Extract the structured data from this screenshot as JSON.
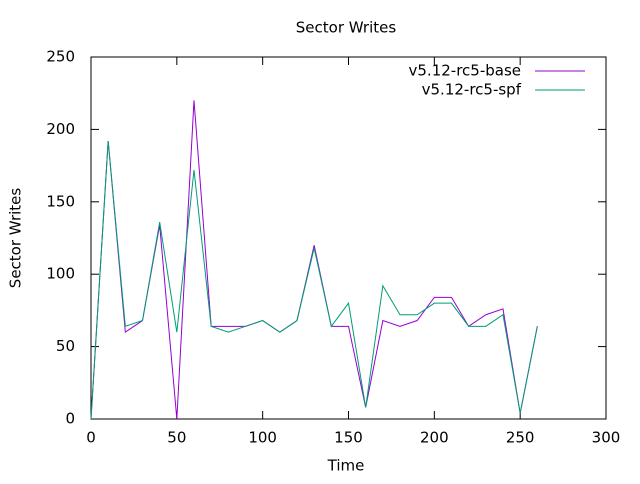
{
  "chart_data": {
    "type": "line",
    "title": "Sector Writes",
    "x_label": "Time",
    "y_label": "Sector Writes",
    "x": [
      0,
      10,
      20,
      30,
      40,
      50,
      60,
      70,
      80,
      90,
      100,
      110,
      120,
      130,
      140,
      150,
      160,
      170,
      180,
      190,
      200,
      210,
      220,
      230,
      240,
      250,
      260
    ],
    "series": [
      {
        "name": "v5.12-rc5-base",
        "color": "#9400d3",
        "values": [
          0,
          192,
          60,
          68,
          134,
          0,
          220,
          64,
          64,
          64,
          68,
          60,
          68,
          120,
          64,
          64,
          8,
          68,
          64,
          68,
          84,
          84,
          64,
          72,
          76,
          4,
          64
        ]
      },
      {
        "name": "v5.12-rc5-spf",
        "color": "#009e73",
        "values": [
          0,
          192,
          64,
          68,
          136,
          60,
          172,
          64,
          60,
          64,
          68,
          60,
          68,
          118,
          64,
          80,
          8,
          92,
          72,
          72,
          80,
          80,
          64,
          64,
          72,
          4,
          64
        ]
      }
    ],
    "xlim": [
      0,
      300
    ],
    "xticks": [
      0,
      50,
      100,
      150,
      200,
      250,
      300
    ],
    "ylim": [
      0,
      250
    ],
    "yticks": [
      0,
      50,
      100,
      150,
      200,
      250
    ],
    "grid": false,
    "legend": "top-right"
  }
}
